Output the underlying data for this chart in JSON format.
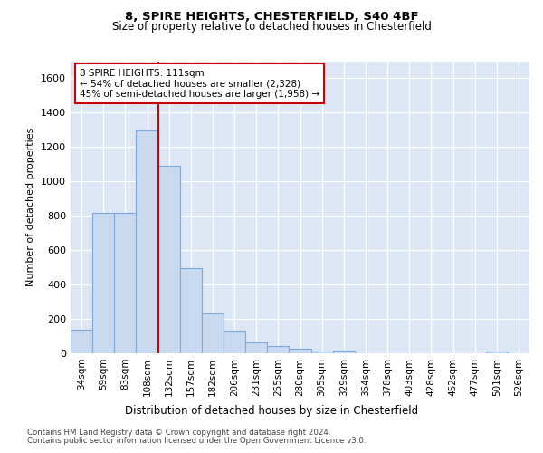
{
  "title1": "8, SPIRE HEIGHTS, CHESTERFIELD, S40 4BF",
  "title2": "Size of property relative to detached houses in Chesterfield",
  "xlabel": "Distribution of detached houses by size in Chesterfield",
  "ylabel": "Number of detached properties",
  "bin_labels": [
    "34sqm",
    "59sqm",
    "83sqm",
    "108sqm",
    "132sqm",
    "157sqm",
    "182sqm",
    "206sqm",
    "231sqm",
    "255sqm",
    "280sqm",
    "305sqm",
    "329sqm",
    "354sqm",
    "378sqm",
    "403sqm",
    "428sqm",
    "452sqm",
    "477sqm",
    "501sqm",
    "526sqm"
  ],
  "bar_values": [
    135,
    815,
    815,
    1295,
    1090,
    495,
    230,
    130,
    65,
    40,
    25,
    10,
    15,
    2,
    2,
    2,
    2,
    2,
    2,
    10,
    2
  ],
  "bar_color": "#c9d9f0",
  "bar_edge_color": "#7aabdb",
  "property_line_x": 3.5,
  "annotation_text": "8 SPIRE HEIGHTS: 111sqm\n← 54% of detached houses are smaller (2,328)\n45% of semi-detached houses are larger (1,958) →",
  "annotation_box_color": "#ffffff",
  "annotation_box_edge": "#cc0000",
  "vline_color": "#cc0000",
  "footer1": "Contains HM Land Registry data © Crown copyright and database right 2024.",
  "footer2": "Contains public sector information licensed under the Open Government Licence v3.0.",
  "plot_bg_color": "#dce6f5",
  "ylim": [
    0,
    1700
  ],
  "yticks": [
    0,
    200,
    400,
    600,
    800,
    1000,
    1200,
    1400,
    1600
  ]
}
